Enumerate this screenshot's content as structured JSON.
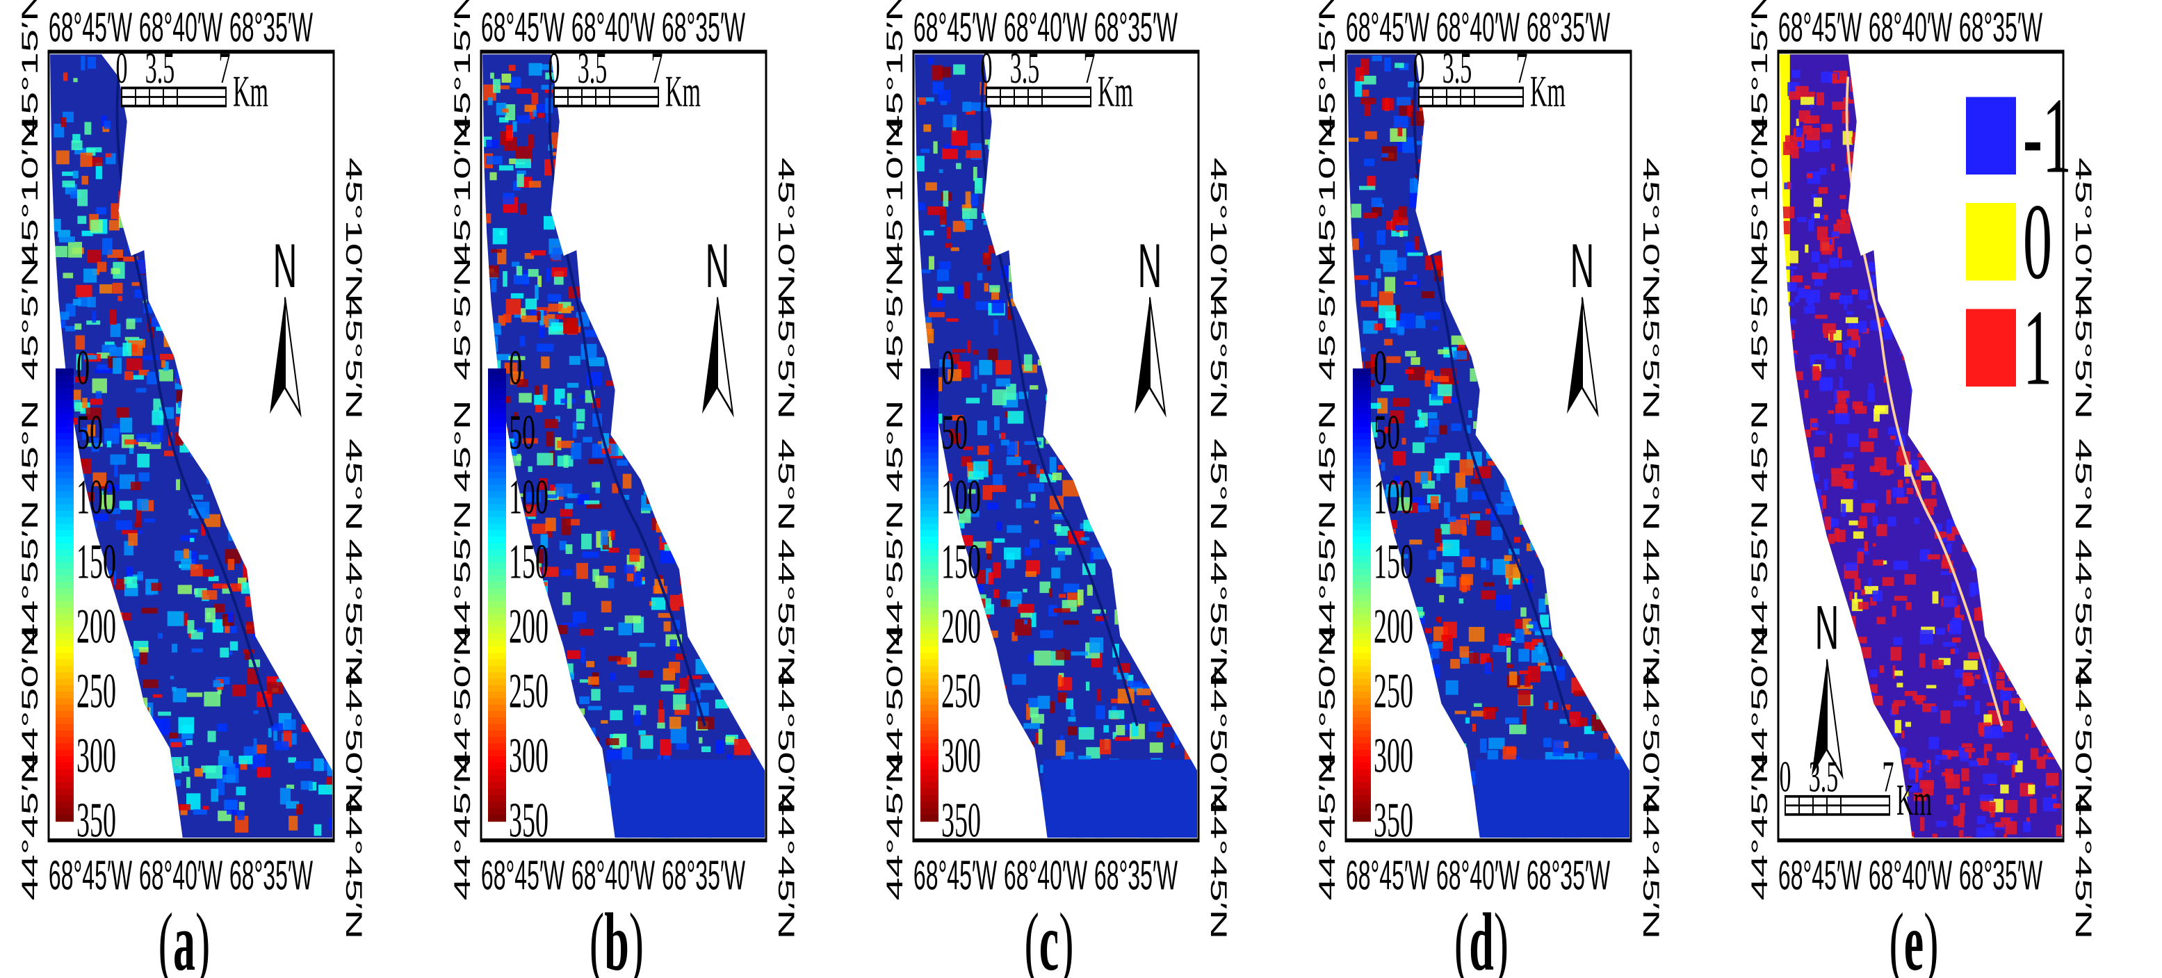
{
  "figure": {
    "panels": [
      {
        "id": "a",
        "letter": "a",
        "kind": "continuous",
        "north_position": "top-right",
        "scale_position": "top"
      },
      {
        "id": "b",
        "letter": "b",
        "kind": "continuous",
        "north_position": "top-right",
        "scale_position": "top"
      },
      {
        "id": "c",
        "letter": "c",
        "kind": "continuous",
        "north_position": "top-right",
        "scale_position": "top"
      },
      {
        "id": "d",
        "letter": "d",
        "kind": "continuous",
        "north_position": "top-right",
        "scale_position": "top"
      },
      {
        "id": "e",
        "letter": "e",
        "kind": "classified",
        "north_position": "bottom-left",
        "scale_position": "bottom"
      }
    ],
    "lon_ticks": [
      "68°45′W",
      "68°40′W",
      "68°35′W"
    ],
    "lat_ticks": [
      "45°15′N",
      "45°10′N",
      "45°5′N",
      "45°N",
      "44°55′N",
      "44°50′N",
      "44°45′N"
    ],
    "colorbar": {
      "labels": [
        "0",
        "50",
        "100",
        "150",
        "200",
        "250",
        "300",
        "350"
      ],
      "min": 0,
      "max": 350,
      "colors": [
        "#00008f",
        "#0000ff",
        "#0080ff",
        "#00ffff",
        "#80ff80",
        "#ffff00",
        "#ff8000",
        "#ff0000",
        "#800000"
      ]
    },
    "scale_bar": {
      "ticks": [
        "0",
        "3.5",
        "7"
      ],
      "unit": "Km"
    },
    "north_label": "N",
    "classified_legend": [
      {
        "label": "-1",
        "color": "#2020ff"
      },
      {
        "label": "0",
        "color": "#ffff00"
      },
      {
        "label": "1",
        "color": "#ff1a1a"
      }
    ],
    "caption_parens": [
      "(",
      ")"
    ]
  }
}
